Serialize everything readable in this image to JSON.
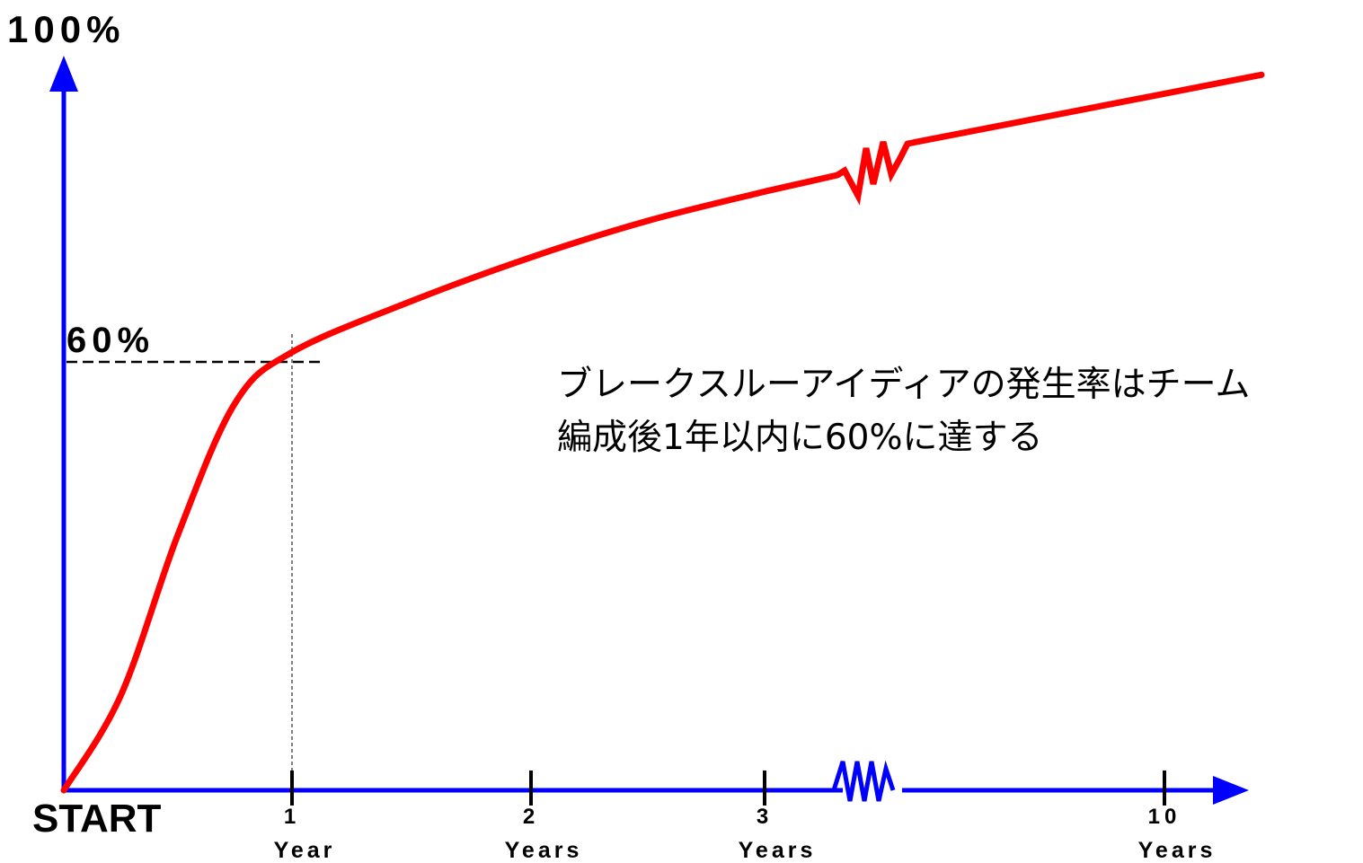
{
  "chart_data": {
    "type": "line",
    "y_max_label": "100%",
    "threshold_label": "60%",
    "origin_label": "START",
    "x_ticks": [
      {
        "value": 1,
        "num": "1",
        "unit": "Year"
      },
      {
        "value": 2,
        "num": "2",
        "unit": "Years"
      },
      {
        "value": 3,
        "num": "3",
        "unit": "Years"
      },
      {
        "value": 10,
        "num": "10",
        "unit": "Years"
      }
    ],
    "axis_break": "between 3 and 10 Years",
    "series": [
      {
        "color": "#ff0000",
        "points": [
          {
            "x": 0,
            "y": 0
          },
          {
            "x": 0.25,
            "y": 13
          },
          {
            "x": 0.5,
            "y": 35
          },
          {
            "x": 0.75,
            "y": 53
          },
          {
            "x": 1,
            "y": 60
          },
          {
            "x": 1.5,
            "y": 67
          },
          {
            "x": 2,
            "y": 73
          },
          {
            "x": 2.5,
            "y": 78
          },
          {
            "x": 3,
            "y": 82
          },
          {
            "x": 10,
            "y": 98
          }
        ]
      }
    ],
    "ylim": [
      0,
      100
    ],
    "annotation": [
      "ブレークスルーアイディアの発生率はチーム",
      "編成後1年以内に60%に達する"
    ],
    "colors": {
      "axis": "#0000ff",
      "curve": "#ff0000",
      "guide": "#000000"
    }
  }
}
